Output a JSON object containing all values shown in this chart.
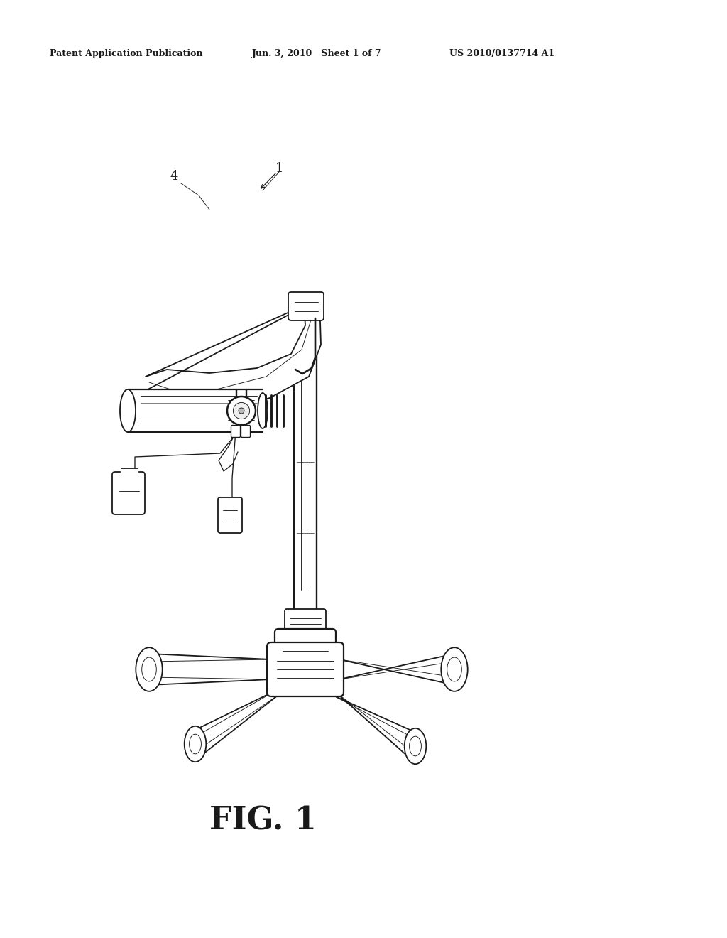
{
  "background_color": "#ffffff",
  "header_left": "Patent Application Publication",
  "header_center": "Jun. 3, 2010   Sheet 1 of 7",
  "header_right": "US 2010/0137714 A1",
  "figure_label": "FIG. 1",
  "label_1": "1",
  "label_4": "4",
  "line_color": "#1a1a1a",
  "lw": 1.3,
  "lwt": 0.65,
  "lwk": 2.0
}
